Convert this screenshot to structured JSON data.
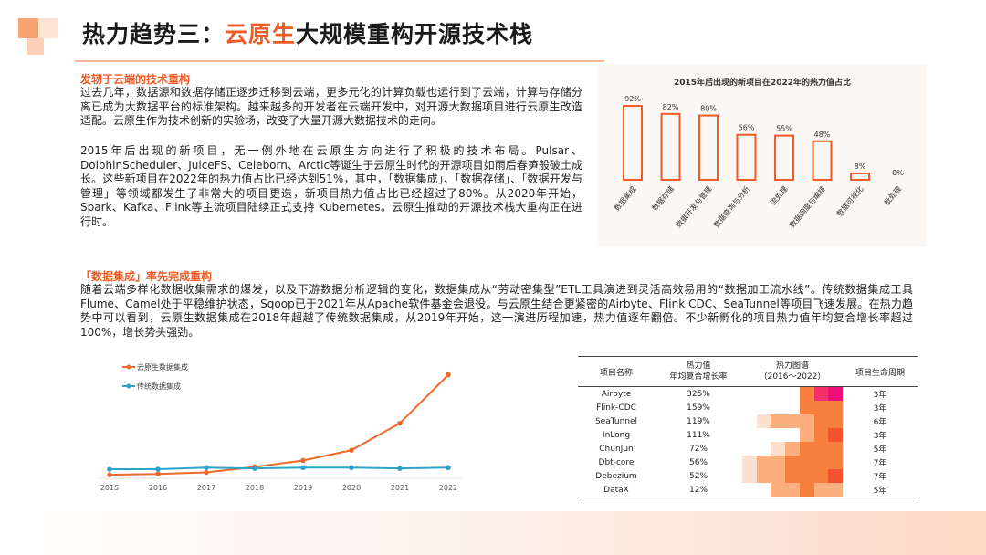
{
  "header": {
    "title_prefix": "热力趋势三：",
    "title_highlight": "云原生",
    "title_suffix": "大规模重构开源技术栈"
  },
  "section1": {
    "heading": "发轫于云端的技术重构",
    "para1": "过去几年，数据源和数据存储正逐步迁移到云端，更多元化的计算负载也运行到了云端，计算与存储分离已成为大数据平台的标准架构。越来越多的开发者在云端开发中，对开源大数据项目进行云原生改造适配。云原生作为技术创新的实验场，改变了大量开源大数据技术的走向。",
    "para2": "2015年后出现的新项目，无一例外地在云原生方向进行了积极的技术布局。Pulsar、DolphinScheduler、JuiceFS、Celeborn、Arctic等诞生于云原生时代的开源项目如雨后春笋般破土成长。这些新项目在2022年的热力值占比已经达到51%，其中，「数据集成」、「数据存储」、「数据开发与管理」等领域都发生了非常大的项目更迭，新项目热力值占比已经超过了80%。从2020年开始，Spark、Kafka、Flink等主流项目陆续正式支持 Kubernetes。云原生推动的开源技术栈大重构正在进行时。"
  },
  "section2": {
    "heading": "「数据集成」率先完成重构",
    "para": "随着云端多样化数据收集需求的爆发，以及下游数据分析逻辑的变化，数据集成从“劳动密集型”ETL工具演进到灵活高效易用的“数据加工流水线”。传统数据集成工具Flume、Camel处于平稳维护状态，Sqoop已于2021年从Apache软件基金会退役。与云原生结合更紧密的Airbyte、Flink CDC、SeaTunnel等项目飞速发展。在热力趋势中可以看到，云原生数据集成在2018年超越了传统数据集成，从2019年开始，这一演进历程加速，热力值逐年翻倍。不少新孵化的项目热力值年均复合增长率超过100%，增长势头强劲。"
  },
  "colors": {
    "accent": "#f05a24",
    "line_cloud": "#ee6a2c",
    "line_traditional": "#2ba4cc"
  },
  "chart_data": [
    {
      "type": "bar",
      "title": "2015年后出现的新项目在2022年的热力值占比",
      "categories": [
        "数据集成",
        "数据存储",
        "数据开发与管理",
        "数据查询与分析",
        "流处理",
        "数据调度与编排",
        "数据可视化",
        "批处理"
      ],
      "values": [
        92,
        82,
        80,
        56,
        55,
        48,
        8,
        0
      ],
      "labels": [
        "92%",
        "82%",
        "80%",
        "56%",
        "55%",
        "48%",
        "8%",
        "0%"
      ],
      "unit": "%",
      "ylim": [
        0,
        100
      ],
      "grid": false
    },
    {
      "type": "line",
      "x": [
        "2015",
        "2016",
        "2017",
        "2018",
        "2019",
        "2020",
        "2021",
        "2022"
      ],
      "series": [
        {
          "name": "云原生数据集成",
          "values": [
            1,
            2,
            4,
            11,
            19,
            32,
            66,
            127
          ]
        },
        {
          "name": "传统数据集成",
          "values": [
            8,
            8,
            10,
            9,
            10,
            10,
            9,
            10
          ]
        }
      ],
      "legend": "top-left",
      "grid": false
    },
    {
      "type": "table",
      "columns": [
        "项目名称",
        "热力值 年均复合增长率",
        "热力图谱 （2016～2022）",
        "项目生命周期"
      ],
      "header_lines": {
        "growth": [
          "热力值",
          "年均复合增长率"
        ],
        "heatmap": [
          "热力图谱",
          "（2016～2022）"
        ]
      },
      "rows": [
        {
          "name": "Airbyte",
          "growth": "325%",
          "lifecycle": "3年",
          "heat": [
            0,
            0,
            0,
            0,
            3,
            5,
            6
          ]
        },
        {
          "name": "Flink-CDC",
          "growth": "159%",
          "lifecycle": "3年",
          "heat": [
            0,
            0,
            0,
            0,
            3,
            3,
            3
          ]
        },
        {
          "name": "SeaTunnel",
          "growth": "119%",
          "lifecycle": "6年",
          "heat": [
            0,
            1,
            2,
            2,
            2,
            3,
            3
          ]
        },
        {
          "name": "InLong",
          "growth": "111%",
          "lifecycle": "3年",
          "heat": [
            0,
            0,
            0,
            0,
            2,
            3,
            4
          ]
        },
        {
          "name": "ChunJun",
          "growth": "72%",
          "lifecycle": "5年",
          "heat": [
            0,
            0,
            1,
            2,
            3,
            3,
            3
          ]
        },
        {
          "name": "Dbt-core",
          "growth": "56%",
          "lifecycle": "7年",
          "heat": [
            1,
            2,
            2,
            3,
            3,
            3,
            3
          ]
        },
        {
          "name": "Debezium",
          "growth": "52%",
          "lifecycle": "7年",
          "heat": [
            1,
            2,
            2,
            3,
            3,
            3,
            4
          ]
        },
        {
          "name": "DataX",
          "growth": "12%",
          "lifecycle": "5年",
          "heat": [
            0,
            0,
            2,
            2,
            3,
            2,
            2
          ]
        }
      ]
    }
  ]
}
